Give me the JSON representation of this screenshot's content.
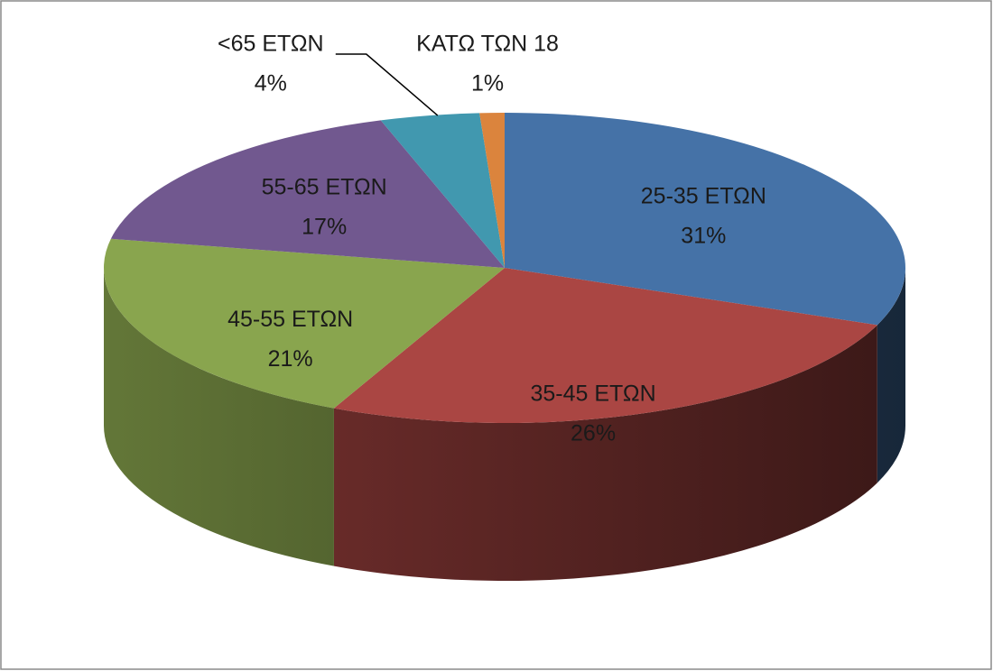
{
  "chart_data": {
    "type": "pie",
    "categories": [
      "25-35 ΕΤΩΝ",
      "35-45 ΕΤΩΝ",
      "45-55 ΕΤΩΝ",
      "55-65 ΕΤΩΝ",
      "<65 ΕΤΩΝ",
      "ΚΑΤΩ ΤΩΝ 18"
    ],
    "values": [
      31,
      26,
      21,
      17,
      4,
      1
    ],
    "value_labels": [
      "31%",
      "26%",
      "21%",
      "17%",
      "4%",
      "1%"
    ],
    "colors": [
      "#4572A7",
      "#AA4643",
      "#89A54E",
      "#71588F",
      "#4198AF",
      "#DB843D"
    ]
  }
}
